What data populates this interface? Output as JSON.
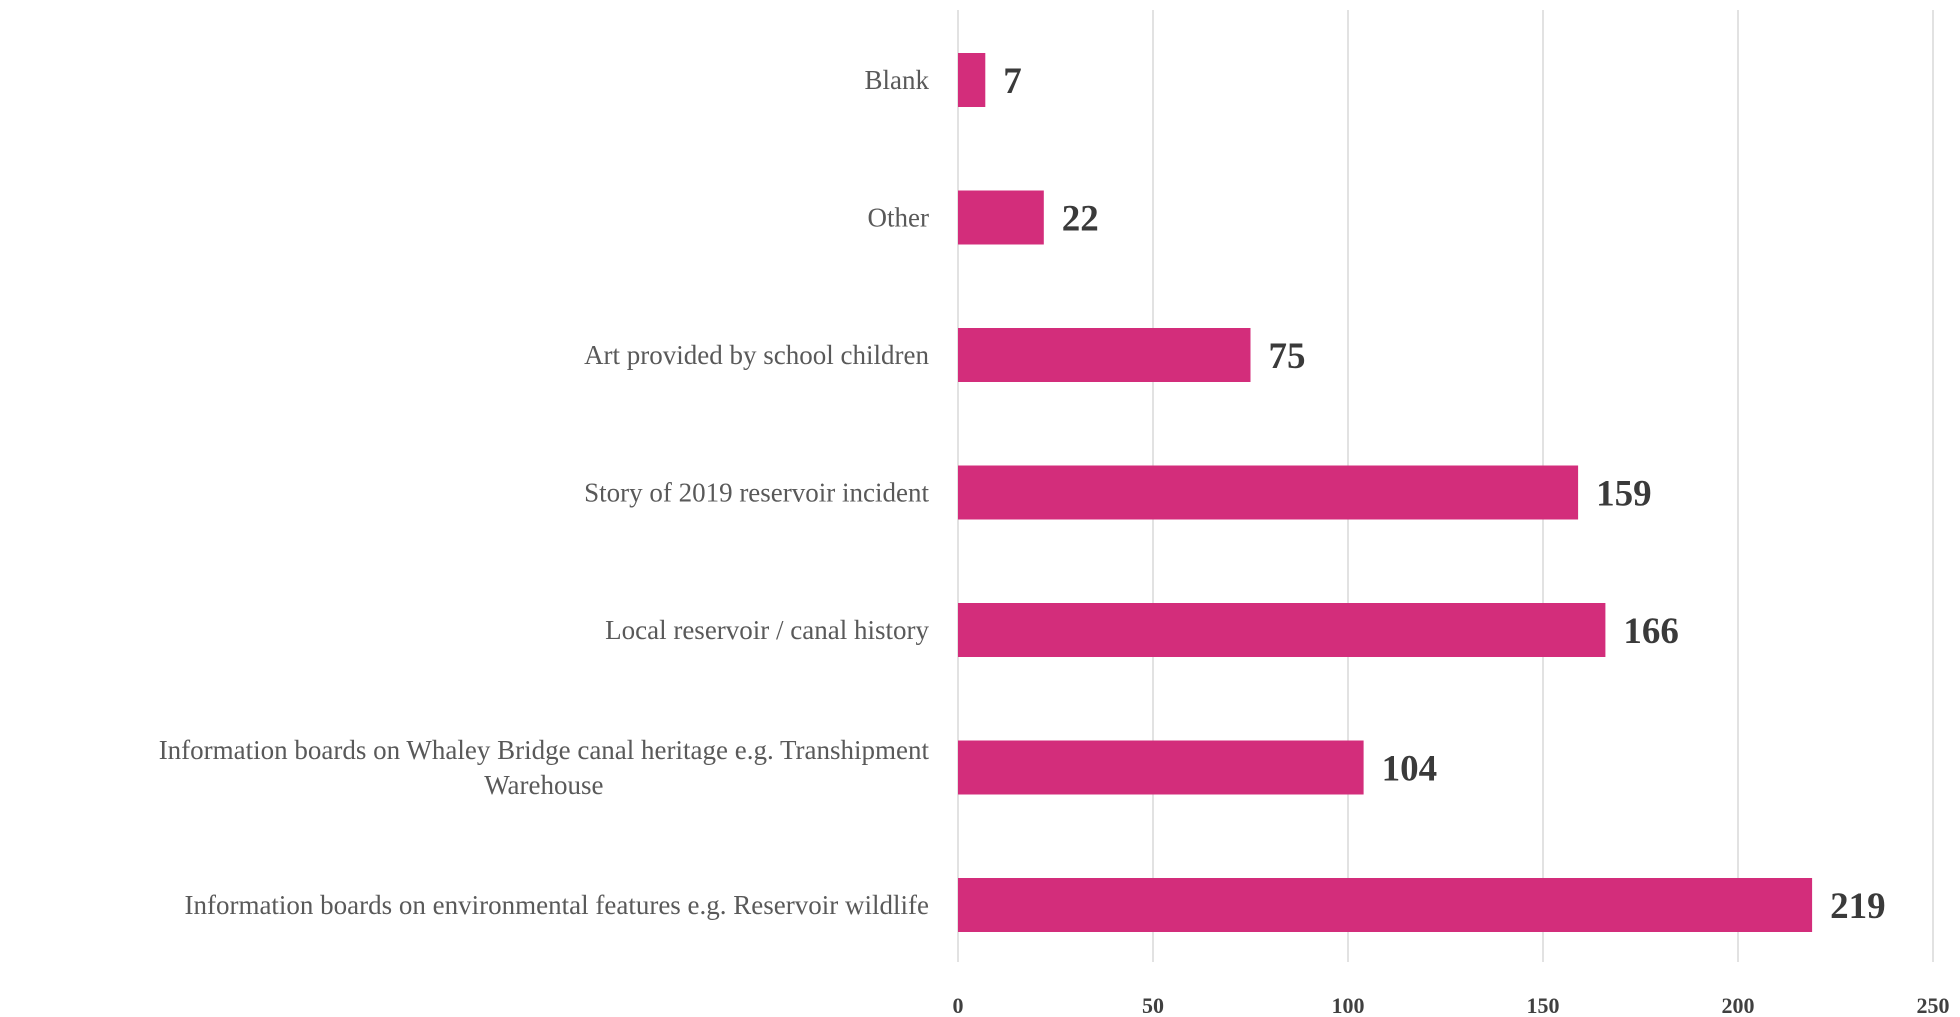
{
  "chart_data": {
    "type": "bar",
    "orientation": "horizontal",
    "categories": [
      [
        "Blank"
      ],
      [
        "Other"
      ],
      [
        "Art provided by school children"
      ],
      [
        "Story of 2019 reservoir incident"
      ],
      [
        "Local reservoir / canal history"
      ],
      [
        "Information boards on Whaley Bridge canal heritage e.g. Transhipment",
        "Warehouse"
      ],
      [
        "Information boards on environmental features e.g. Reservoir wildlife"
      ]
    ],
    "values": [
      7,
      22,
      75,
      159,
      166,
      104,
      219
    ],
    "value_labels": [
      "7",
      "22",
      "75",
      "159",
      "166",
      "104",
      "219"
    ],
    "xlim": [
      0,
      250
    ],
    "xticks": [
      0,
      50,
      100,
      150,
      200,
      250
    ],
    "xtick_labels": [
      "0",
      "50",
      "100",
      "150",
      "200",
      "250"
    ],
    "grid": "vertical",
    "bar_color": "#d32d7b",
    "grid_color": "#d9d9d9",
    "title": "",
    "xlabel": "",
    "ylabel": ""
  }
}
